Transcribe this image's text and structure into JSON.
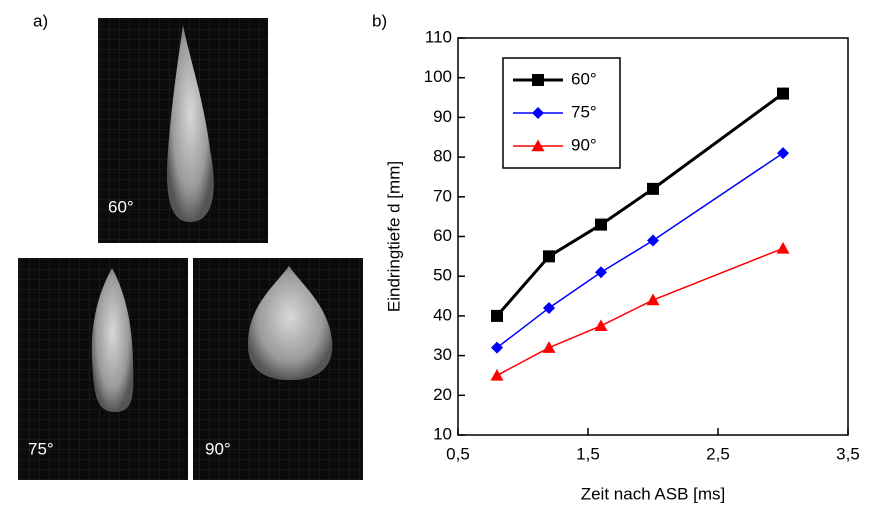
{
  "panels": {
    "a": "a)",
    "b": "b)"
  },
  "images": [
    {
      "label": "60°"
    },
    {
      "label": "75°"
    },
    {
      "label": "90°"
    }
  ],
  "chart_data": {
    "type": "line",
    "x_label": "Zeit nach ASB [ms]",
    "y_label": "Eindringtiefe d [mm]",
    "x": [
      0.8,
      1.2,
      1.6,
      2.0,
      3.0
    ],
    "series": [
      {
        "name": "60°",
        "color": "#000000",
        "marker": "square",
        "values": [
          40,
          55,
          63,
          72,
          96
        ]
      },
      {
        "name": "75°",
        "color": "#0000ff",
        "marker": "diamond",
        "values": [
          32,
          42,
          51,
          59,
          81
        ]
      },
      {
        "name": "90°",
        "color": "#ff0000",
        "marker": "triangle",
        "values": [
          25,
          32,
          37.5,
          44,
          57
        ]
      }
    ],
    "xlim": [
      0.5,
      3.5
    ],
    "xticks": [
      {
        "value": 0.5,
        "label": "0,5"
      },
      {
        "value": 1.5,
        "label": "1,5"
      },
      {
        "value": 2.5,
        "label": "2,5"
      },
      {
        "value": 3.5,
        "label": "3,5"
      }
    ],
    "ylim": [
      10,
      110
    ],
    "yticks": [
      10,
      20,
      30,
      40,
      50,
      60,
      70,
      80,
      90,
      100,
      110
    ],
    "legend": "upper left"
  }
}
